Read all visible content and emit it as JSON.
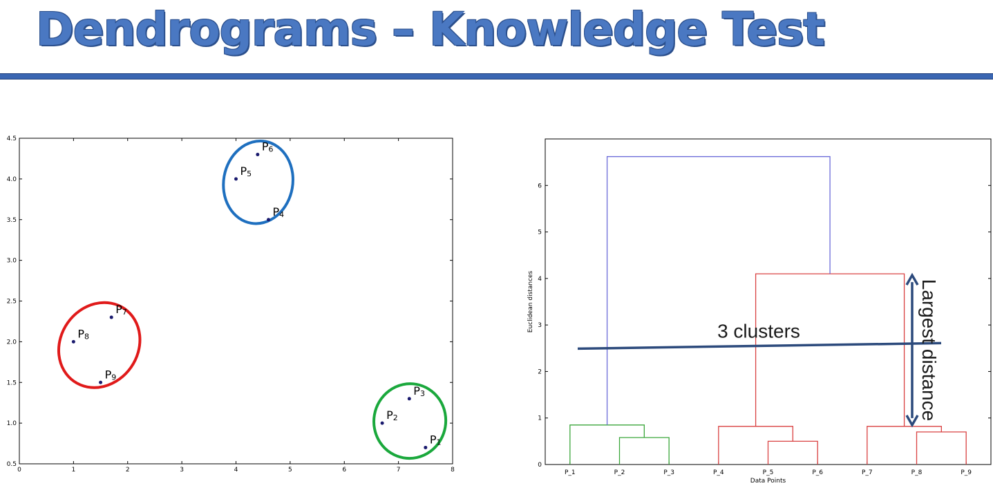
{
  "slide": {
    "title": "Dendrograms – Knowledge Test",
    "accent_color": "#4a78c2"
  },
  "chart_data": [
    {
      "type": "scatter",
      "xlim": [
        0,
        8
      ],
      "ylim": [
        0.5,
        4.5
      ],
      "xticks": [
        0,
        1,
        2,
        3,
        4,
        5,
        6,
        7,
        8
      ],
      "yticks": [
        0.5,
        1.0,
        1.5,
        2.0,
        2.5,
        3.0,
        3.5,
        4.0,
        4.5
      ],
      "points": [
        {
          "label": "P",
          "sub": "1",
          "x": 7.5,
          "y": 0.7
        },
        {
          "label": "P",
          "sub": "2",
          "x": 6.7,
          "y": 1.0
        },
        {
          "label": "P",
          "sub": "3",
          "x": 7.2,
          "y": 1.3
        },
        {
          "label": "P",
          "sub": "4",
          "x": 4.6,
          "y": 3.5
        },
        {
          "label": "P",
          "sub": "5",
          "x": 4.0,
          "y": 4.0
        },
        {
          "label": "P",
          "sub": "6",
          "x": 4.4,
          "y": 4.3
        },
        {
          "label": "P",
          "sub": "7",
          "x": 1.7,
          "y": 2.3
        },
        {
          "label": "P",
          "sub": "8",
          "x": 1.0,
          "y": 2.0
        },
        {
          "label": "P",
          "sub": "9",
          "x": 1.5,
          "y": 1.5
        }
      ],
      "point_color": "#1a1a6e",
      "cluster_circles": [
        {
          "color": "#1e6fbf",
          "members": [
            "4",
            "5",
            "6"
          ]
        },
        {
          "color": "#e01a1a",
          "members": [
            "7",
            "8",
            "9"
          ]
        },
        {
          "color": "#1aa83c",
          "members": [
            "1",
            "2",
            "3"
          ]
        }
      ]
    },
    {
      "type": "dendrogram",
      "ylabel": "Euclidean distances",
      "xlabel": "Data Points",
      "ylim": [
        0,
        7
      ],
      "yticks": [
        0,
        1,
        2,
        3,
        4,
        5,
        6
      ],
      "leaves": [
        "P_1",
        "P_2",
        "P_3",
        "P_4",
        "P_5",
        "P_6",
        "P_7",
        "P_8",
        "P_9"
      ],
      "merges": [
        {
          "left": "P_2",
          "right": "P_3",
          "height": 0.58,
          "color": "#3aa63a"
        },
        {
          "left": "P_1",
          "right": "P_2+P_3",
          "height": 0.85,
          "color": "#3aa63a"
        },
        {
          "left": "P_5",
          "right": "P_6",
          "height": 0.5,
          "color": "#d94040"
        },
        {
          "left": "P_4",
          "right": "P_5+P_6",
          "height": 0.82,
          "color": "#d94040"
        },
        {
          "left": "P_8",
          "right": "P_9",
          "height": 0.7,
          "color": "#d94040"
        },
        {
          "left": "P_7",
          "right": "P_8+P_9",
          "height": 0.82,
          "color": "#d94040"
        },
        {
          "left": "C_456",
          "right": "C_789",
          "height": 4.1,
          "color": "#d94040"
        },
        {
          "left": "C_123",
          "right": "C_456789",
          "height": 6.62,
          "color": "#6a6ad9"
        }
      ],
      "annotations": {
        "cut_label": "3 clusters",
        "cut_height": 2.55,
        "arrow_label": "Largest distance",
        "arrow_color": "#2c4a7c"
      }
    }
  ]
}
